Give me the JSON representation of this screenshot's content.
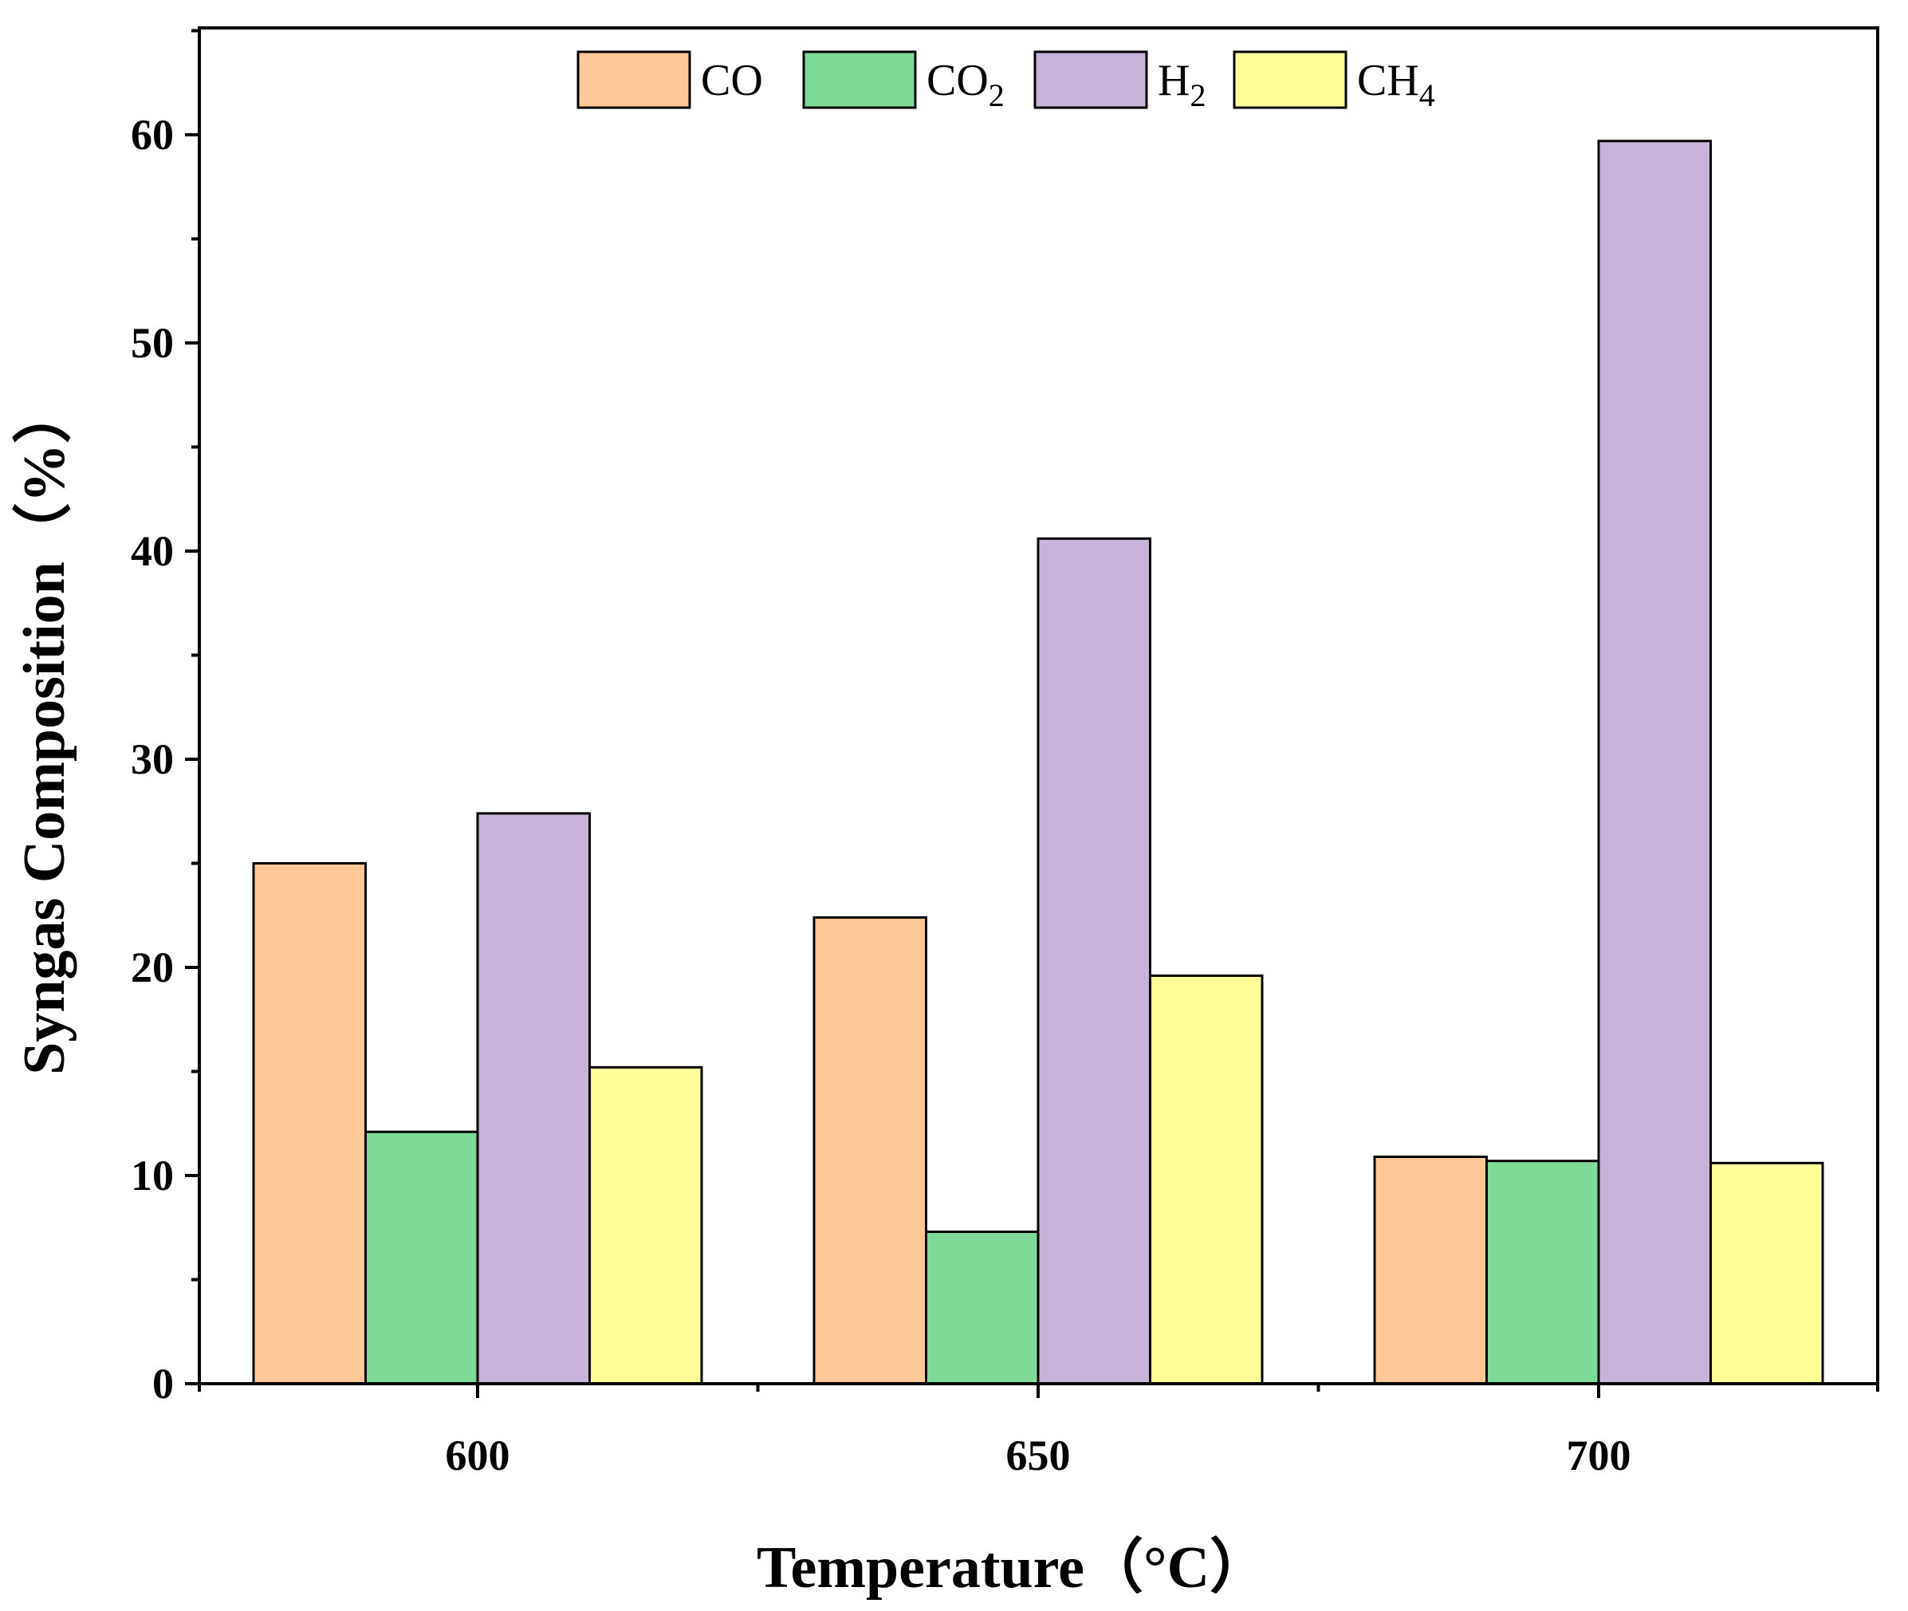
{
  "chart_data": {
    "type": "bar",
    "title": "",
    "xlabel": "Temperature（°C）",
    "ylabel": "Syngas Composition（%）",
    "categories": [
      "600",
      "650",
      "700"
    ],
    "ylim": [
      0,
      65
    ],
    "yticks": [
      "0",
      "10",
      "20",
      "30",
      "40",
      "50",
      "60"
    ],
    "grid": false,
    "legend_position": "top-center",
    "series": [
      {
        "name": "CO",
        "label_base": "CO",
        "label_sub": "",
        "color": "#FFC896",
        "values": [
          25.0,
          22.4,
          10.9
        ]
      },
      {
        "name": "CO2",
        "label_base": "CO",
        "label_sub": "2",
        "color": "#80DA98",
        "values": [
          12.1,
          7.3,
          10.7
        ]
      },
      {
        "name": "H2",
        "label_base": "H",
        "label_sub": "2",
        "color": "#C8B4D8",
        "values": [
          27.4,
          40.6,
          59.7
        ]
      },
      {
        "name": "CH4",
        "label_base": "CH",
        "label_sub": "4",
        "color": "#FFFF99",
        "values": [
          15.2,
          19.6,
          10.6
        ]
      }
    ]
  }
}
